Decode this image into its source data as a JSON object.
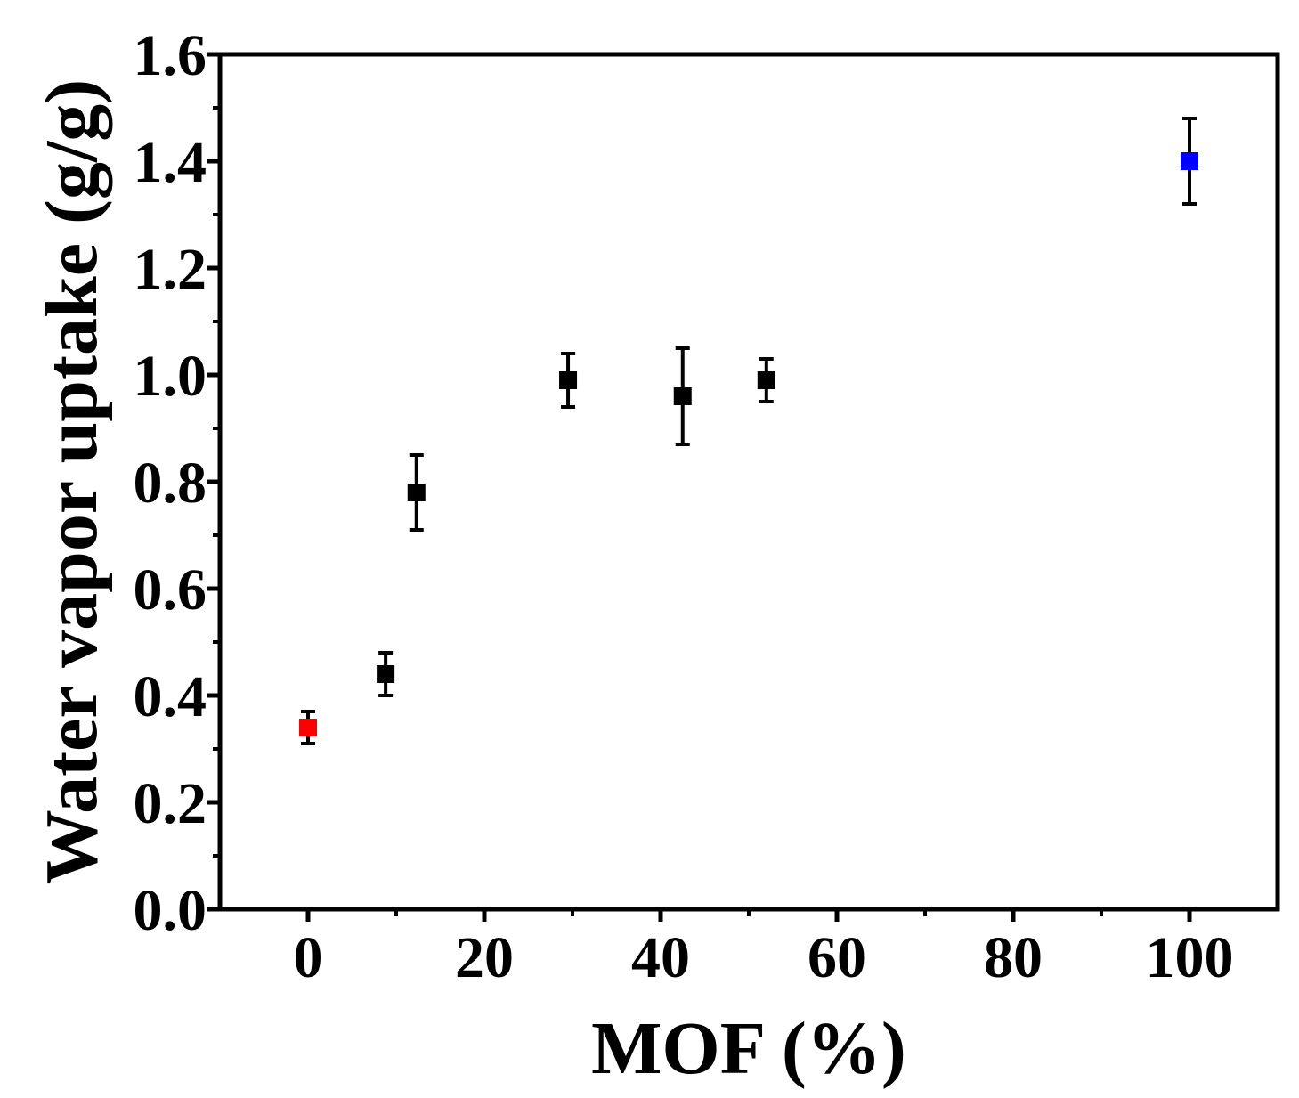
{
  "chart_data": {
    "type": "scatter",
    "title": "",
    "xlabel": "MOF (%)",
    "ylabel": "Water vapor uptake (g/g)",
    "xlim": [
      -10,
      110
    ],
    "ylim": [
      0.0,
      1.6
    ],
    "x_ticks": [
      0,
      20,
      40,
      60,
      80,
      100
    ],
    "x_tick_labels": [
      "0",
      "20",
      "40",
      "60",
      "80",
      "100"
    ],
    "x_minor_ticks": [
      10,
      30,
      50,
      70,
      90
    ],
    "y_ticks": [
      0.0,
      0.2,
      0.4,
      0.6,
      0.8,
      1.0,
      1.2,
      1.4,
      1.6
    ],
    "y_tick_labels": [
      "0.0",
      "0.2",
      "0.4",
      "0.6",
      "0.8",
      "1.0",
      "1.2",
      "1.4",
      "1.6"
    ],
    "y_minor_ticks": [
      0.1,
      0.3,
      0.5,
      0.7,
      0.9,
      1.1,
      1.3,
      1.5
    ],
    "grid": false,
    "legend": "none",
    "marker": "square",
    "points": [
      {
        "x": 0,
        "y": 0.34,
        "err": 0.03,
        "color": "#ff0000"
      },
      {
        "x": 8.8,
        "y": 0.44,
        "err": 0.04,
        "color": "#000000"
      },
      {
        "x": 12.3,
        "y": 0.78,
        "err": 0.07,
        "color": "#000000"
      },
      {
        "x": 29.5,
        "y": 0.99,
        "err": 0.05,
        "color": "#000000"
      },
      {
        "x": 42.5,
        "y": 0.96,
        "err": 0.09,
        "color": "#000000"
      },
      {
        "x": 52,
        "y": 0.99,
        "err": 0.04,
        "color": "#000000"
      },
      {
        "x": 100,
        "y": 1.4,
        "err": 0.08,
        "color": "#0000ff"
      }
    ]
  }
}
